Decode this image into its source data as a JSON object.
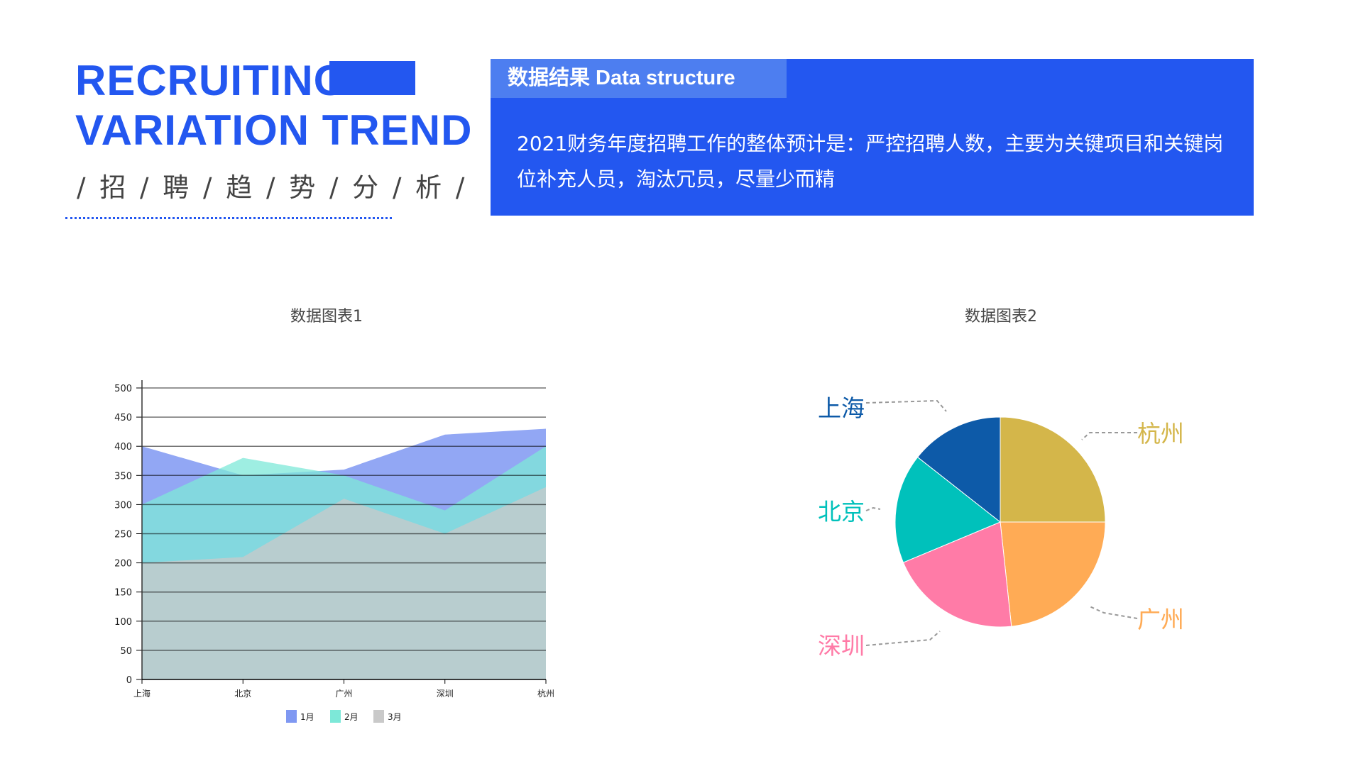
{
  "header": {
    "title_line1": "RECRUITING",
    "title_line2": "VARIATION TREND",
    "subtitle": "/ 招 / 聘 / 趋 / 势 / 分 / 析 /",
    "accent": "#2357f0"
  },
  "result_box": {
    "tab_label": "数据结果  Data structure",
    "description": "2021财务年度招聘工作的整体预计是：严控招聘人数，主要为关键项目和关键岗位补充人员，淘汰冗员，尽量少而精"
  },
  "chart_data": [
    {
      "type": "area",
      "title": "数据图表1",
      "categories": [
        "上海",
        "北京",
        "广州",
        "深圳",
        "杭州"
      ],
      "ylim": [
        0,
        500
      ],
      "yticks": [
        0,
        50,
        100,
        150,
        200,
        250,
        300,
        350,
        400,
        450,
        500
      ],
      "grid": true,
      "legend": "bottom",
      "series": [
        {
          "name": "1月",
          "values": [
            400,
            350,
            360,
            420,
            430
          ],
          "color": "#7f98f2"
        },
        {
          "name": "2月",
          "values": [
            300,
            380,
            350,
            290,
            400
          ],
          "color": "#7de8d8"
        },
        {
          "name": "3月",
          "values": [
            200,
            210,
            310,
            250,
            330
          ],
          "color": "#c9c9c9"
        }
      ]
    },
    {
      "type": "pie",
      "title": "数据图表2",
      "categories": [
        "杭州",
        "广州",
        "深圳",
        "北京",
        "上海"
      ],
      "values": [
        25,
        23.3,
        20.4,
        16.9,
        14.4
      ],
      "colors": [
        "#d4b64a",
        "#ffab55",
        "#ff7ba7",
        "#00c1bb",
        "#0d5aa8"
      ]
    }
  ]
}
